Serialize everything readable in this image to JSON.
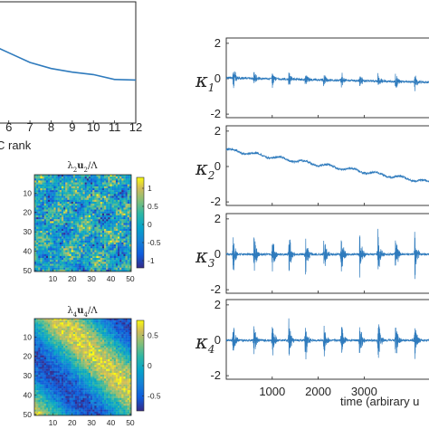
{
  "chart_data": [
    {
      "type": "line",
      "panel": "rank-curve",
      "xlabel": "C rank",
      "xlabel_visible": "C rank",
      "x_ticks": [
        "6",
        "7",
        "8",
        "9",
        "10",
        "11",
        "12"
      ],
      "series": [
        {
          "x": [
            5.5,
            6,
            7,
            8,
            9,
            10,
            11,
            12
          ],
          "y": [
            0.62,
            0.58,
            0.5,
            0.45,
            0.42,
            0.4,
            0.36,
            0.355
          ]
        }
      ],
      "xlim": [
        5.5,
        12
      ],
      "ylim": [
        0,
        1
      ],
      "color": "#2f7bbd"
    },
    {
      "type": "heatmap",
      "panel": "mode-2",
      "title_main": "λ",
      "title_sub1": "2",
      "title_mid": "u",
      "title_sub2": "2",
      "title_tail": "/Λ",
      "x_ticks": [
        "10",
        "20",
        "30",
        "40",
        "50"
      ],
      "y_ticks": [
        "10",
        "20",
        "30",
        "40",
        "50"
      ],
      "colorbar_ticks": [
        "1",
        "0.5",
        "0",
        "-0.5",
        "-1"
      ],
      "colorbar_range": [
        -1.2,
        1.3
      ],
      "pattern": "noise",
      "seed": 7
    },
    {
      "type": "heatmap",
      "panel": "mode-4",
      "title_main": "λ",
      "title_sub1": "4",
      "title_mid": "u",
      "title_sub2": "4",
      "title_tail": "/Λ",
      "x_ticks": [
        "10",
        "20",
        "30",
        "40",
        "50"
      ],
      "y_ticks": [
        "10",
        "20",
        "30",
        "40",
        "50"
      ],
      "colorbar_ticks": [
        "0.5",
        "0",
        "-0.5"
      ],
      "colorbar_range": [
        -0.75,
        0.75
      ],
      "pattern": "stripes",
      "seed": 19
    },
    {
      "type": "line",
      "panel": "kappa-timeseries",
      "xlabel": "time (arbirary units)",
      "xlabel_visible": "time (arbirary u",
      "x_ticks": [
        1000,
        2000,
        3000
      ],
      "xlim": [
        0,
        4450
      ],
      "color": "#2f7bbd",
      "series": [
        {
          "name": "κ1",
          "symbol": "κ",
          "sub": "1",
          "ylim": [
            -2.2,
            2.3
          ],
          "y_ticks": [
            2,
            0,
            -2
          ],
          "kind": "bursts",
          "baseline_start": 0.05,
          "baseline_end": -0.2,
          "bursts": [
            {
              "t": 150,
              "amp": 0.8
            },
            {
              "t": 600,
              "amp": 0.55
            },
            {
              "t": 1000,
              "amp": 0.5
            },
            {
              "t": 1360,
              "amp": 0.5
            },
            {
              "t": 1720,
              "amp": 0.55
            },
            {
              "t": 2120,
              "amp": 0.55
            },
            {
              "t": 2500,
              "amp": 0.6
            },
            {
              "t": 2900,
              "amp": 0.6
            },
            {
              "t": 3300,
              "amp": 0.6
            },
            {
              "t": 3680,
              "amp": 0.65
            },
            {
              "t": 4100,
              "amp": 0.6
            }
          ]
        },
        {
          "name": "κ2",
          "symbol": "κ",
          "sub": "2",
          "ylim": [
            -2.2,
            2.3
          ],
          "y_ticks": [
            2,
            0,
            -2
          ],
          "kind": "drift",
          "baseline_start": 0.95,
          "baseline_end": -0.9,
          "bursts": []
        },
        {
          "name": "κ3",
          "symbol": "κ",
          "sub": "3",
          "ylim": [
            -2.2,
            2.3
          ],
          "y_ticks": [
            2,
            0,
            -2
          ],
          "kind": "bursts",
          "baseline_start": 0.0,
          "baseline_end": 0.0,
          "bursts": [
            {
              "t": 150,
              "amp": 1.2
            },
            {
              "t": 600,
              "amp": 1.2
            },
            {
              "t": 1000,
              "amp": 1.3
            },
            {
              "t": 1360,
              "amp": 1.3
            },
            {
              "t": 1720,
              "amp": 1.35
            },
            {
              "t": 2120,
              "amp": 1.35
            },
            {
              "t": 2500,
              "amp": 1.4
            },
            {
              "t": 2900,
              "amp": 1.4
            },
            {
              "t": 3300,
              "amp": 1.4
            },
            {
              "t": 3680,
              "amp": 1.45
            },
            {
              "t": 4100,
              "amp": 1.4
            }
          ]
        },
        {
          "name": "κ4",
          "symbol": "κ",
          "sub": "4",
          "ylim": [
            -2.2,
            2.3
          ],
          "y_ticks": [
            2,
            0,
            -2
          ],
          "kind": "bursts",
          "baseline_start": 0.0,
          "baseline_end": 0.0,
          "bursts": [
            {
              "t": 150,
              "amp": 1.0
            },
            {
              "t": 600,
              "amp": 1.0
            },
            {
              "t": 1000,
              "amp": 1.1
            },
            {
              "t": 1360,
              "amp": 1.1
            },
            {
              "t": 1720,
              "amp": 1.2
            },
            {
              "t": 2120,
              "amp": 1.2
            },
            {
              "t": 2500,
              "amp": 1.2
            },
            {
              "t": 2900,
              "amp": 1.25
            },
            {
              "t": 3300,
              "amp": 1.25
            },
            {
              "t": 3680,
              "amp": 1.3
            },
            {
              "t": 4100,
              "amp": 1.25
            }
          ]
        }
      ]
    }
  ]
}
